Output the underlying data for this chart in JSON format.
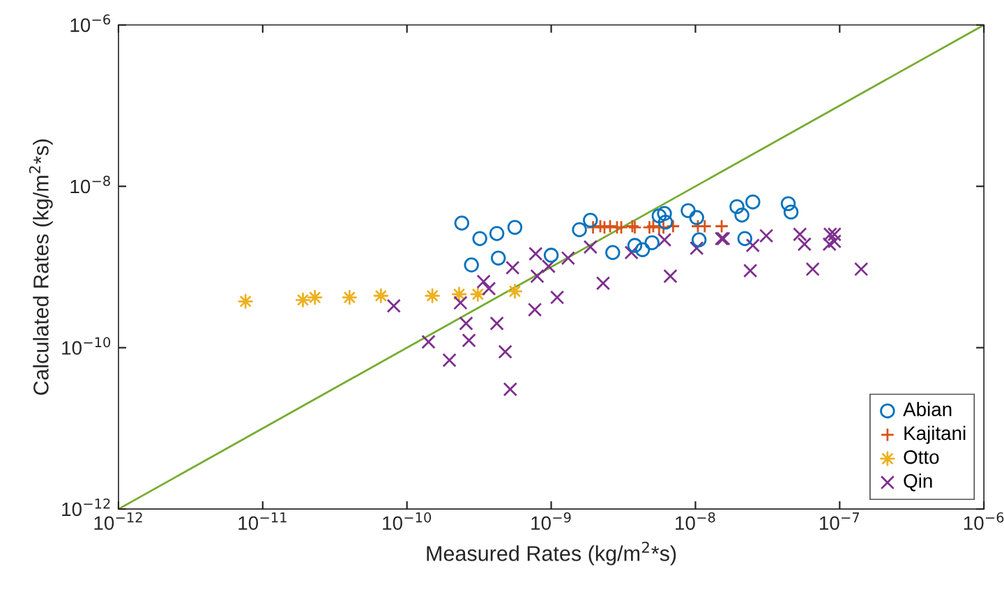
{
  "chart_data": {
    "type": "scatter",
    "xlabel": "Measured Rates (kg/m$^{2}$*s)",
    "ylabel": "Calculated Rates (kg/m$^{2}$*s)",
    "log": "xy",
    "grid": false,
    "legend": "bottom right",
    "xlim": [
      1e-12,
      1e-06
    ],
    "ylim": [
      1e-12,
      1e-06
    ],
    "xticks": [
      {
        "value": 1e-12,
        "label": "10$^{−12}$"
      },
      {
        "value": 1e-11,
        "label": "10$^{−11}$"
      },
      {
        "value": 1e-10,
        "label": "10$^{−10}$"
      },
      {
        "value": 1e-09,
        "label": "10$^{−9}$"
      },
      {
        "value": 1e-08,
        "label": "10$^{−8}$"
      },
      {
        "value": 1e-07,
        "label": "10$^{−7}$"
      },
      {
        "value": 1e-06,
        "label": "10$^{−6}$"
      }
    ],
    "yticks": [
      {
        "value": 1e-12,
        "label": "10$^{−12}$"
      },
      {
        "value": 1e-10,
        "label": "10$^{−10}$"
      },
      {
        "value": 1e-08,
        "label": "10$^{−8}$"
      },
      {
        "value": 1e-06,
        "label": "10$^{−6}$"
      }
    ],
    "series": [
      {
        "type": "line",
        "marker": "none",
        "line_style": "solid",
        "color": "#77ac30",
        "x": [
          1e-12,
          1e-06
        ],
        "values": [
          1e-12,
          1e-06
        ]
      },
      {
        "name": "Abian",
        "marker": "circle",
        "color": "#0072bd",
        "x": [
          2.4e-10,
          3.2e-10,
          4.2e-10,
          5.6e-10,
          2.8e-10,
          4.3e-10,
          1e-09,
          1.57e-09,
          1.87e-09,
          2.67e-09,
          3.8e-09,
          4.3e-09,
          5e-09,
          5.6e-09,
          6.1e-09,
          6.2e-09,
          8.9e-09,
          1.02e-08,
          1.06e-08,
          1.94e-08,
          2.1e-08,
          2.2e-08,
          2.5e-08,
          4.4e-08,
          4.6e-08
        ],
        "values": [
          3.5e-09,
          2.25e-09,
          2.6e-09,
          3.1e-09,
          1.06e-09,
          1.29e-09,
          1.4e-09,
          2.9e-09,
          3.8e-09,
          1.51e-09,
          1.85e-09,
          1.64e-09,
          2e-09,
          4.3e-09,
          4.6e-09,
          3.6e-09,
          5e-09,
          4.1e-09,
          2.17e-09,
          5.6e-09,
          4.4e-09,
          2.25e-09,
          6.4e-09,
          6.1e-09,
          4.8e-09
        ]
      },
      {
        "name": "Kajitani",
        "marker": "plus",
        "color": "#d95319",
        "x": [
          1.95e-09,
          2.19e-09,
          2.34e-09,
          2.56e-09,
          2.86e-09,
          3.06e-09,
          3.65e-09,
          3.8e-09,
          4.8e-09,
          5.1e-09,
          5.6e-09,
          6e-09,
          7e-09,
          1.04e-08,
          1.16e-08,
          1.52e-08
        ],
        "values": [
          3.1e-09,
          3.2e-09,
          3.1e-09,
          3.2e-09,
          3.1e-09,
          3.1e-09,
          3.2e-09,
          3.1e-09,
          3.1e-09,
          3.2e-09,
          3.1e-09,
          3.1e-09,
          3.2e-09,
          3.2e-09,
          3.2e-09,
          3.2e-09
        ]
      },
      {
        "name": "Otto",
        "marker": "star",
        "color": "#edb120",
        "x": [
          7.6e-12,
          1.9e-11,
          2.3e-11,
          4e-11,
          6.6e-11,
          1.5e-10,
          2.3e-10,
          3.1e-10,
          5.6e-10
        ],
        "values": [
          3.75e-10,
          3.9e-10,
          4.2e-10,
          4.2e-10,
          4.4e-10,
          4.4e-10,
          4.6e-10,
          4.6e-10,
          5e-10
        ]
      },
      {
        "name": "Qin",
        "marker": "cross",
        "color": "#7e2f8e",
        "x": [
          8.1e-11,
          1.41e-10,
          1.97e-10,
          2.35e-10,
          2.57e-10,
          2.69e-10,
          3.4e-10,
          3.7e-10,
          4.2e-10,
          4.8e-10,
          5.2e-10,
          5.4e-10,
          7.8e-10,
          8e-10,
          7.7e-10,
          9.6e-10,
          1.1e-09,
          1.31e-09,
          1.87e-09,
          2.29e-09,
          3.6e-09,
          6.1e-09,
          6.7e-09,
          1.02e-08,
          1.52e-08,
          1.56e-08,
          2.4e-08,
          2.5e-08,
          3.1e-08,
          5.3e-08,
          5.7e-08,
          6.5e-08,
          8.6e-08,
          9.2e-08,
          8.5e-08,
          9.2e-08,
          1.41e-07
        ],
        "values": [
          3.3e-10,
          1.18e-10,
          7e-11,
          3.6e-10,
          2e-10,
          1.23e-10,
          6.6e-10,
          5.4e-10,
          2e-10,
          8.9e-11,
          3.05e-11,
          9.8e-10,
          1.46e-09,
          7.7e-10,
          2.96e-10,
          1.02e-09,
          4.2e-10,
          1.29e-09,
          1.77e-09,
          6.3e-10,
          1.51e-09,
          2.17e-09,
          7.7e-10,
          1.71e-09,
          2.25e-09,
          2.25e-09,
          9e-10,
          1.85e-09,
          2.44e-09,
          2.54e-09,
          1.92e-09,
          9.4e-10,
          2.54e-09,
          2.54e-09,
          1.92e-09,
          2.08e-09,
          9.4e-10
        ]
      }
    ]
  }
}
